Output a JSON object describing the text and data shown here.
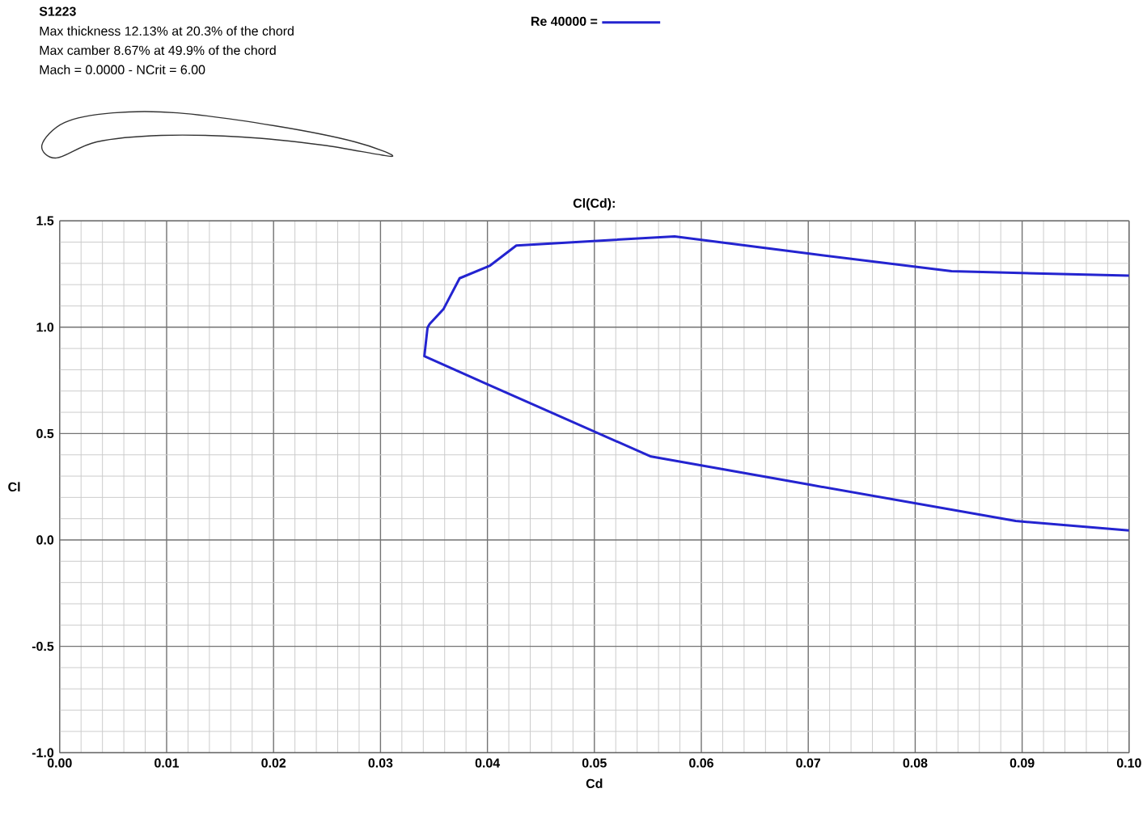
{
  "chart_data": {
    "type": "line",
    "title": "Cl(Cd):",
    "xlabel": "Cd",
    "ylabel": "Cl",
    "annotations": [
      "S1223",
      "Max thickness 12.13% at 20.3% of the chord",
      "Max camber 8.67% at 49.9% of the chord",
      "Mach = 0.0000 - NCrit = 6.00"
    ],
    "series": [
      {
        "name": "Re 40000 =",
        "color": "#2424d0",
        "x": [
          0.1,
          0.0894,
          0.0701,
          0.0553,
          0.0402,
          0.0341,
          0.0344,
          0.0346,
          0.0359,
          0.0374,
          0.0402,
          0.0427,
          0.0575,
          0.0701,
          0.0834,
          0.1
        ],
        "values": [
          0.045,
          0.089,
          0.26,
          0.392,
          0.727,
          0.864,
          0.998,
          1.015,
          1.086,
          1.23,
          1.288,
          1.384,
          1.427,
          1.346,
          1.263,
          1.242
        ]
      }
    ],
    "xlim": [
      0,
      0.1
    ],
    "ylim": [
      -1.0,
      1.5
    ],
    "xticks": [
      {
        "value": 0,
        "label": "0.00"
      },
      {
        "value": 0.01,
        "label": "0.01"
      },
      {
        "value": 0.02,
        "label": "0.02"
      },
      {
        "value": 0.03,
        "label": "0.03"
      },
      {
        "value": 0.04,
        "label": "0.04"
      },
      {
        "value": 0.05,
        "label": "0.05"
      },
      {
        "value": 0.06,
        "label": "0.06"
      },
      {
        "value": 0.07,
        "label": "0.07"
      },
      {
        "value": 0.08,
        "label": "0.08"
      },
      {
        "value": 0.09,
        "label": "0.09"
      },
      {
        "value": 0.1,
        "label": "0.10"
      }
    ],
    "yticks": [
      {
        "value": -1.0,
        "label": "-1.0"
      },
      {
        "value": -0.5,
        "label": "-0.5"
      },
      {
        "value": 0,
        "label": "0.0"
      },
      {
        "value": 0.5,
        "label": "0.5"
      },
      {
        "value": 1.0,
        "label": "1.0"
      },
      {
        "value": 1.5,
        "label": "1.5"
      }
    ],
    "grid": true,
    "legend": "top"
  }
}
